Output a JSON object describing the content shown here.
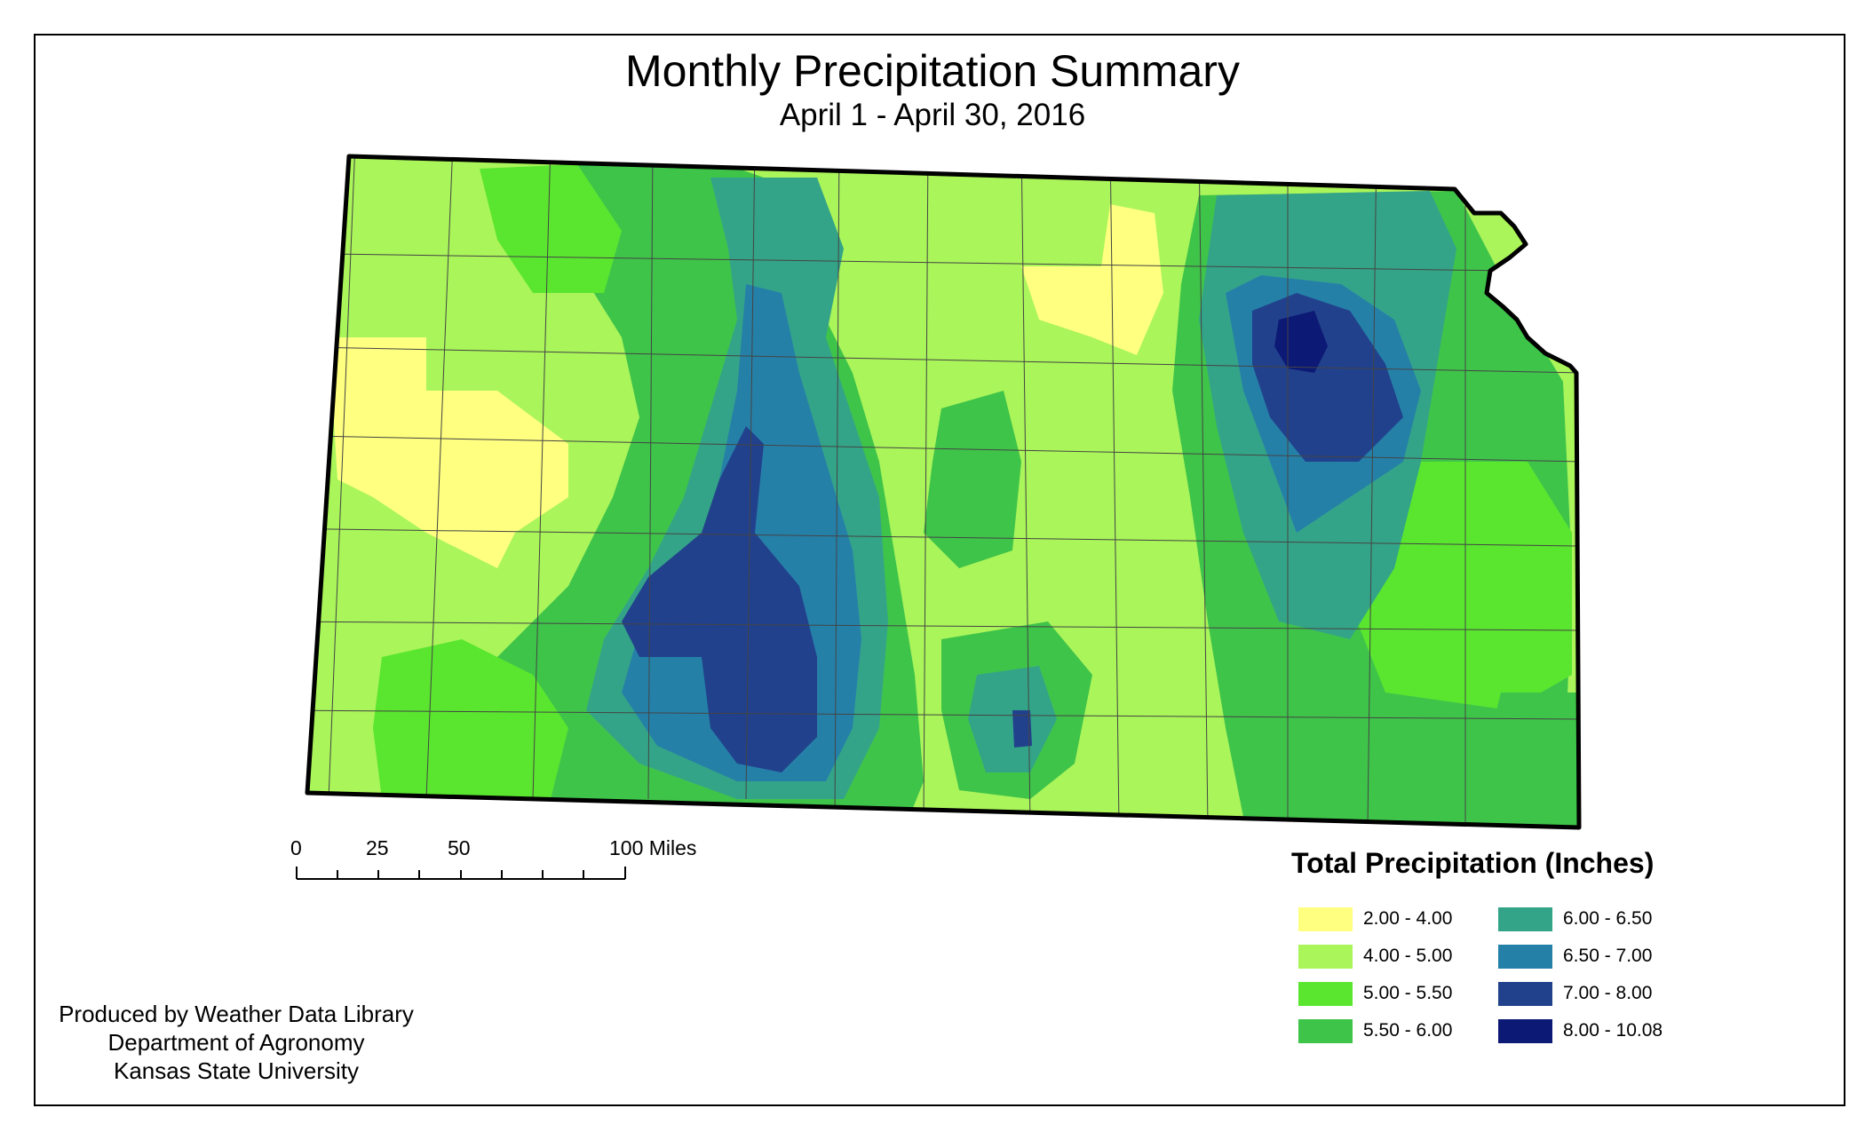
{
  "title": "Monthly Precipitation Summary",
  "subtitle": "April 1 - April 30, 2016",
  "scale_bar": {
    "labels": [
      "0",
      "25",
      "50",
      "100 Miles"
    ]
  },
  "legend": {
    "title": "Total Precipitation (Inches)",
    "items": [
      {
        "label": "2.00 - 4.00",
        "color": "#ffff80"
      },
      {
        "label": "4.00 - 5.00",
        "color": "#aaf55a"
      },
      {
        "label": "5.00 - 5.50",
        "color": "#5ae62f"
      },
      {
        "label": "5.50 - 6.00",
        "color": "#3fc44a"
      },
      {
        "label": "6.00 - 6.50",
        "color": "#34a488"
      },
      {
        "label": "6.50 - 7.00",
        "color": "#2580a8"
      },
      {
        "label": "7.00 - 8.00",
        "color": "#22418c"
      },
      {
        "label": "8.00 - 10.08",
        "color": "#0c1975"
      }
    ]
  },
  "credits": {
    "line1": "Produced by Weather Data Library",
    "line2": "Department of Agronomy",
    "line3": "Kansas State University"
  }
}
